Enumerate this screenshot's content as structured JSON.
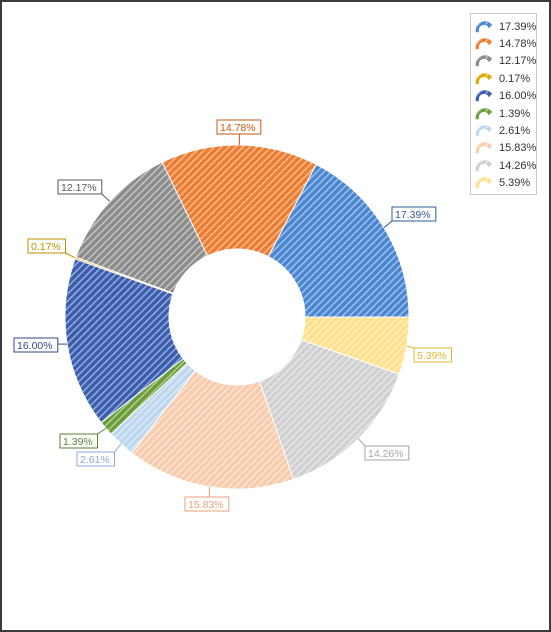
{
  "chart_data": {
    "type": "pie",
    "donut": true,
    "start_angle_deg": 0,
    "direction": "counterclockwise",
    "legend_position": "top-right",
    "fill_pattern": "diagonal-stripes",
    "title": "",
    "slices": [
      {
        "label": "17.39%",
        "value": 17.39,
        "color": "#4A86D1",
        "label_color": "#2F5B9A"
      },
      {
        "label": "14.78%",
        "value": 14.78,
        "color": "#ED7D31",
        "label_color": "#C55A11"
      },
      {
        "label": "12.17%",
        "value": 12.17,
        "color": "#8C8C8C",
        "label_color": "#595959"
      },
      {
        "label": "0.17%",
        "value": 0.17,
        "color": "#E0A800",
        "label_color": "#BF8F00"
      },
      {
        "label": "16.00%",
        "value": 16.0,
        "color": "#3B5FB0",
        "label_color": "#2F4A8A"
      },
      {
        "label": "1.39%",
        "value": 1.39,
        "color": "#6A9E3A",
        "label_color": "#548235"
      },
      {
        "label": "2.61%",
        "value": 2.61,
        "color": "#BDD7EE",
        "label_color": "#8EA9DB"
      },
      {
        "label": "15.83%",
        "value": 15.83,
        "color": "#F8CBAD",
        "label_color": "#E7A07A"
      },
      {
        "label": "14.26%",
        "value": 14.26,
        "color": "#D0D0D0",
        "label_color": "#A5A5A5"
      },
      {
        "label": "5.39%",
        "value": 5.39,
        "color": "#FFE08A",
        "label_color": "#E0B830"
      }
    ]
  }
}
